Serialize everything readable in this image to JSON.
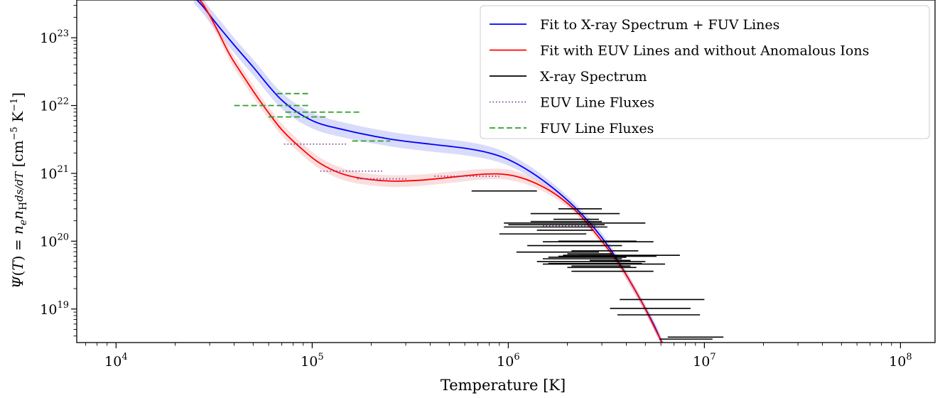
{
  "chart_data": {
    "type": "line",
    "xlabel": "Temperature [K]",
    "ylabel": "Ψ(T) = n_e n_H ds/dT [cm⁻⁵ K⁻¹]",
    "xscale": "log",
    "yscale": "log",
    "xlim": [
      6300,
      150000000
    ],
    "ylim": [
      3.2e+18,
      3.6e+23
    ],
    "x_ticks": [
      {
        "value": 10000,
        "base": "10",
        "exp": "4"
      },
      {
        "value": 100000,
        "base": "10",
        "exp": "5"
      },
      {
        "value": 1000000,
        "base": "10",
        "exp": "6"
      },
      {
        "value": 10000000,
        "base": "10",
        "exp": "7"
      },
      {
        "value": 100000000,
        "base": "10",
        "exp": "8"
      }
    ],
    "y_ticks": [
      {
        "value": 1e+19,
        "base": "10",
        "exp": "19"
      },
      {
        "value": 1e+20,
        "base": "10",
        "exp": "20"
      },
      {
        "value": 1e+21,
        "base": "10",
        "exp": "21"
      },
      {
        "value": 1e+22,
        "base": "10",
        "exp": "22"
      },
      {
        "value": 1e+23,
        "base": "10",
        "exp": "23"
      }
    ],
    "grid": false,
    "legend_position": "top-right",
    "series": [
      {
        "name": "Fit to X-ray Spectrum + FUV Lines",
        "style": "solid",
        "color": "#0000ff",
        "band_color": "#aab0f5",
        "x": [
          25000,
          28000,
          32000,
          40000,
          50000,
          70000,
          100000,
          150000,
          250000,
          400000,
          600000,
          800000,
          1000000,
          1300000,
          1700000,
          2200000,
          2800000,
          3500000,
          4500000,
          5500000,
          6500000
        ],
        "y": [
          4e+23,
          2.8e+23,
          1.7e+23,
          7.8e+22,
          3.7e+22,
          1.2e+22,
          6e+21,
          4.3e+21,
          3.2e+21,
          2.7e+21,
          2.35e+21,
          2e+21,
          1.6e+21,
          1.05e+21,
          6e+20,
          3.1e+20,
          1.45e+20,
          6e+19,
          1.75e+19,
          6e+18,
          2e+18
        ],
        "band_upper": [
          5e+23,
          3.5e+23,
          2.2e+23,
          1e+23,
          4.8e+22,
          1.55e+22,
          7.8e+21,
          5.5e+21,
          4.1e+21,
          3.4e+21,
          2.95e+21,
          2.5e+21,
          1.95e+21,
          1.25e+21,
          7e+20,
          3.6e+20,
          1.7e+20,
          7e+19,
          2e+19,
          7e+18,
          2.4e+18
        ],
        "band_lower": [
          3.2e+23,
          2.2e+23,
          1.3e+23,
          6e+22,
          2.8e+22,
          9e+21,
          4.6e+21,
          3.3e+21,
          2.5e+21,
          2.1e+21,
          1.85e+21,
          1.6e+21,
          1.3e+21,
          8.8e+20,
          5.1e+20,
          2.65e+20,
          1.25e+20,
          5.1e+19,
          1.5e+19,
          5.1e+18,
          1.7e+18
        ]
      },
      {
        "name": "Fit with EUV Lines and without Anomalous Ions",
        "style": "solid",
        "color": "#ff0000",
        "band_color": "#f5b5b5",
        "x": [
          25000,
          28000,
          32000,
          38000,
          45000,
          55000,
          70000,
          90000,
          110000,
          140000,
          180000,
          250000,
          350000,
          500000,
          700000,
          900000,
          1100000,
          1400000,
          1800000,
          2300000,
          3000000,
          3800000,
          4800000,
          5800000,
          6500000
        ],
        "y": [
          4.5e+23,
          3e+23,
          1.5e+23,
          5.6e+22,
          2.6e+22,
          1.1e+22,
          4.4e+21,
          2.2e+21,
          1.4e+21,
          1e+21,
          8.4e+20,
          7.7e+20,
          7.9e+20,
          8.7e+20,
          9.6e+20,
          9.8e+20,
          9e+20,
          7e+20,
          4.6e+20,
          2.5e+20,
          1e+20,
          4e+19,
          1.25e+19,
          4.2e+18,
          2.2e+18
        ],
        "band_upper": [
          5.3e+23,
          3.6e+23,
          1.8e+23,
          6.8e+22,
          3.2e+22,
          1.35e+22,
          5.4e+21,
          2.7e+21,
          1.7e+21,
          1.22e+21,
          1.02e+21,
          9.4e+20,
          9.6e+20,
          1.05e+21,
          1.15e+21,
          1.17e+21,
          1.07e+21,
          8.2e+20,
          5.3e+20,
          2.85e+20,
          1.15e+20,
          4.5e+19,
          1.4e+19,
          4.7e+18,
          2.5e+18
        ],
        "band_lower": [
          3.8e+23,
          2.5e+23,
          1.25e+23,
          4.6e+22,
          2.1e+22,
          9e+21,
          3.6e+21,
          1.8e+21,
          1.15e+21,
          8.2e+20,
          6.9e+20,
          6.3e+20,
          6.5e+20,
          7.2e+20,
          8e+20,
          8.2e+20,
          7.6e+20,
          6e+20,
          4e+20,
          2.2e+20,
          8.8e+19,
          3.5e+19,
          1.1e+19,
          3.7e+18,
          1.95e+18
        ]
      }
    ],
    "xray_spectrum": {
      "name": "X-ray Spectrum",
      "color": "#000000",
      "segments": [
        {
          "x1": 650000,
          "x2": 1400000,
          "y": 5.5e+20
        },
        {
          "x1": 1800000,
          "x2": 3000000,
          "y": 3e+20
        },
        {
          "x1": 1300000,
          "x2": 3700000,
          "y": 2.55e+20
        },
        {
          "x1": 1700000,
          "x2": 2900000,
          "y": 2.1e+20
        },
        {
          "x1": 1300000,
          "x2": 3000000,
          "y": 1.95e+20
        },
        {
          "x1": 950000,
          "x2": 5000000,
          "y": 1.85e+20
        },
        {
          "x1": 1000000,
          "x2": 3100000,
          "y": 1.75e+20
        },
        {
          "x1": 950000,
          "x2": 3200000,
          "y": 1.62e+20
        },
        {
          "x1": 1400000,
          "x2": 2700000,
          "y": 1.45e+20
        },
        {
          "x1": 900000,
          "x2": 2500000,
          "y": 1.28e+20
        },
        {
          "x1": 1800000,
          "x2": 4500000,
          "y": 1e+20
        },
        {
          "x1": 1500000,
          "x2": 5500000,
          "y": 9.8e+19
        },
        {
          "x1": 1250000,
          "x2": 3800000,
          "y": 8.6e+19
        },
        {
          "x1": 2100000,
          "x2": 4600000,
          "y": 7.2e+19
        },
        {
          "x1": 1100000,
          "x2": 2900000,
          "y": 6.9e+19
        },
        {
          "x1": 2000000,
          "x2": 3400000,
          "y": 6.5e+19
        },
        {
          "x1": 1900000,
          "x2": 3600000,
          "y": 6.2e+19
        },
        {
          "x1": 1800000,
          "x2": 5700000,
          "y": 6e+19
        },
        {
          "x1": 1600000,
          "x2": 4000000,
          "y": 5.8e+19
        },
        {
          "x1": 2300000,
          "x2": 7500000,
          "y": 6.2e+19
        },
        {
          "x1": 1500000,
          "x2": 3800000,
          "y": 5.5e+19
        },
        {
          "x1": 2600000,
          "x2": 4200000,
          "y": 5.2e+19
        },
        {
          "x1": 1400000,
          "x2": 5000000,
          "y": 5e+19
        },
        {
          "x1": 1600000,
          "x2": 4800000,
          "y": 4.7e+19
        },
        {
          "x1": 1500000,
          "x2": 6300000,
          "y": 4.6e+19
        },
        {
          "x1": 2100000,
          "x2": 4200000,
          "y": 4.3e+19
        },
        {
          "x1": 2000000,
          "x2": 4500000,
          "y": 4.1e+19
        },
        {
          "x1": 2100000,
          "x2": 5500000,
          "y": 3.6e+19
        },
        {
          "x1": 3700000,
          "x2": 10000000,
          "y": 1.38e+19
        },
        {
          "x1": 3300000,
          "x2": 8500000,
          "y": 1.02e+19
        },
        {
          "x1": 3600000,
          "x2": 9500000,
          "y": 8.2e+18
        },
        {
          "x1": 6500000,
          "x2": 12500000,
          "y": 3.85e+18
        },
        {
          "x1": 5900000,
          "x2": 11000000,
          "y": 3.6e+18
        }
      ]
    },
    "euv_line_fluxes": {
      "name": "EUV Line Fluxes",
      "color": "#7b3fa0",
      "segments": [
        {
          "x1": 72000,
          "x2": 150000,
          "y": 2.7e+21
        },
        {
          "x1": 110000,
          "x2": 230000,
          "y": 1.08e+21
        },
        {
          "x1": 170000,
          "x2": 310000,
          "y": 8.3e+20
        },
        {
          "x1": 420000,
          "x2": 900000,
          "y": 9.1e+20
        },
        {
          "x1": 1500000,
          "x2": 2800000,
          "y": 1.68e+20
        }
      ]
    },
    "fuv_line_fluxes": {
      "name": "FUV Line Fluxes",
      "color": "#2ca02c",
      "segments": [
        {
          "x1": 66000,
          "x2": 98000,
          "y": 1.5e+22
        },
        {
          "x1": 40000,
          "x2": 98000,
          "y": 1e+22
        },
        {
          "x1": 73000,
          "x2": 180000,
          "y": 8e+21
        },
        {
          "x1": 60000,
          "x2": 120000,
          "y": 6.8e+21
        },
        {
          "x1": 160000,
          "x2": 250000,
          "y": 3e+21
        }
      ]
    }
  }
}
